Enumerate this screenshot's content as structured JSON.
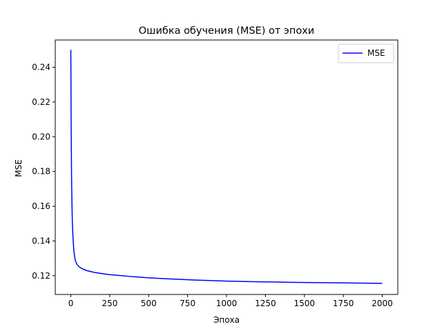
{
  "chart_data": {
    "type": "line",
    "title": "Ошибка обучения (MSE) от эпохи",
    "xlabel": "Эпоха",
    "ylabel": "MSE",
    "xlim": [
      -100,
      2100
    ],
    "ylim": [
      0.1092,
      0.2557
    ],
    "x_ticks": [
      0,
      250,
      500,
      750,
      1000,
      1250,
      1500,
      1750,
      2000
    ],
    "x_tick_labels": [
      "0",
      "250",
      "500",
      "750",
      "1000",
      "1250",
      "1500",
      "1750",
      "2000"
    ],
    "y_ticks": [
      0.12,
      0.14,
      0.16,
      0.18,
      0.2,
      0.22,
      0.24
    ],
    "y_tick_labels": [
      "0.12",
      "0.14",
      "0.16",
      "0.18",
      "0.20",
      "0.22",
      "0.24"
    ],
    "grid": false,
    "legend_position": "top-right",
    "series": [
      {
        "name": "MSE",
        "color": "#0000ff",
        "x": [
          0,
          2,
          5,
          8,
          10,
          15,
          20,
          25,
          30,
          40,
          50,
          60,
          80,
          100,
          150,
          200,
          250,
          300,
          400,
          500,
          600,
          700,
          800,
          900,
          1000,
          1100,
          1200,
          1300,
          1400,
          1500,
          1600,
          1700,
          1800,
          1900,
          2000
        ],
        "y": [
          0.25,
          0.208,
          0.175,
          0.158,
          0.15,
          0.14,
          0.134,
          0.1305,
          0.1285,
          0.1265,
          0.1254,
          0.1247,
          0.1237,
          0.123,
          0.1219,
          0.1212,
          0.1206,
          0.1202,
          0.1194,
          0.1188,
          0.1183,
          0.1179,
          0.1175,
          0.1172,
          0.1169,
          0.1167,
          0.1165,
          0.1164,
          0.1162,
          0.1161,
          0.116,
          0.1159,
          0.1158,
          0.1157,
          0.1156
        ]
      }
    ]
  }
}
